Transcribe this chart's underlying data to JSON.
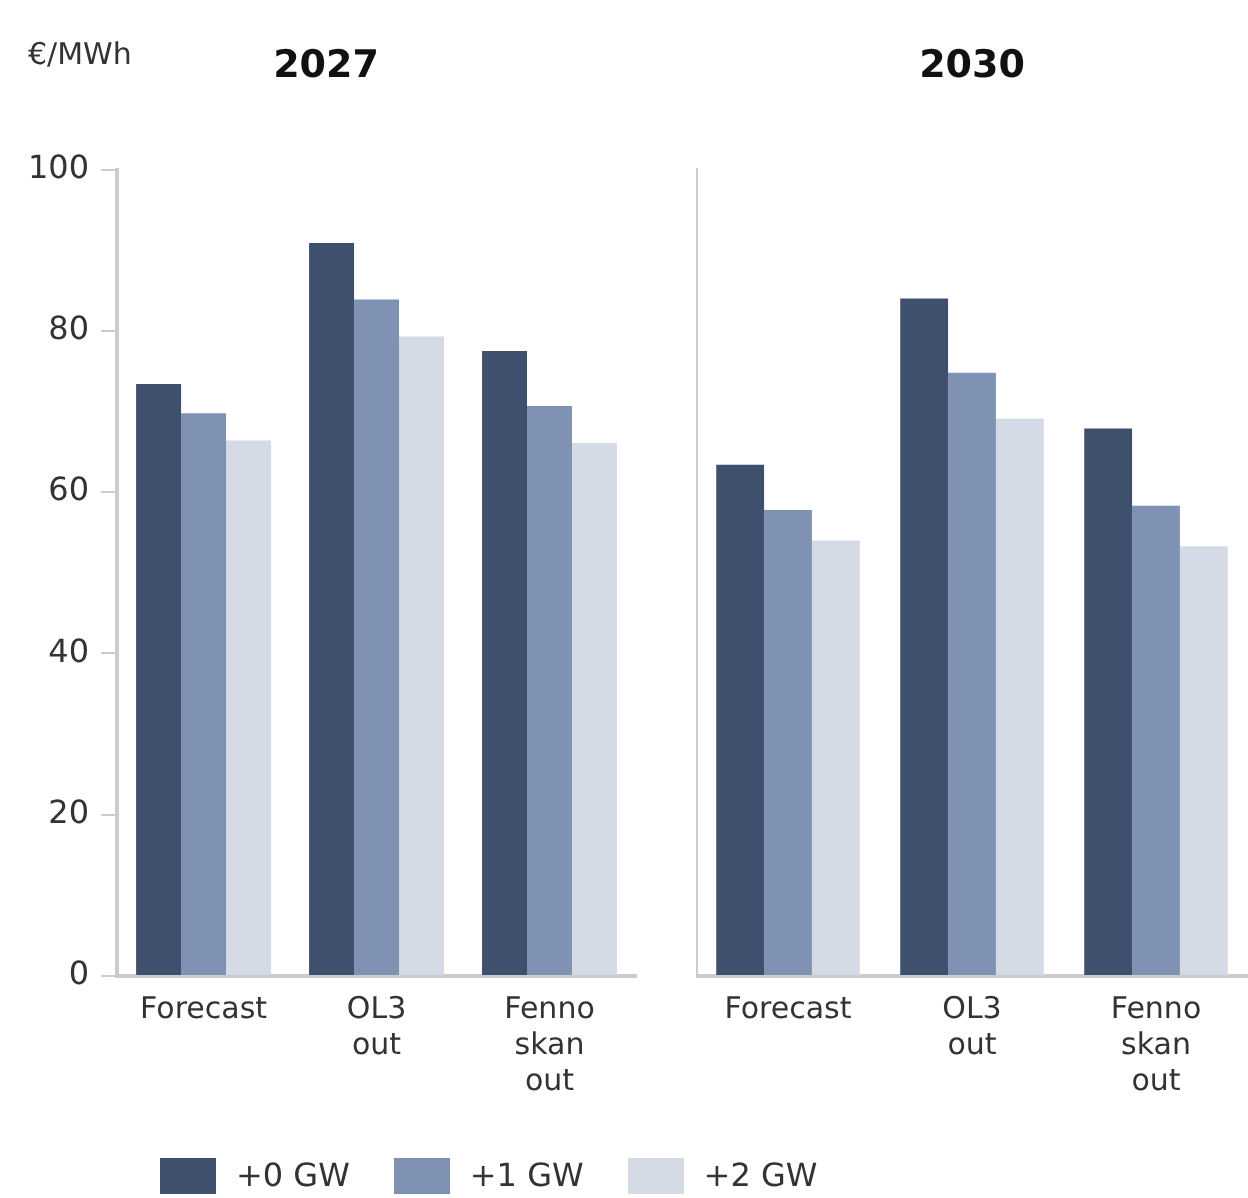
{
  "chart_data": [
    {
      "type": "bar",
      "title": "2027",
      "ylabel": "€/MWh",
      "categories": [
        "Forecast",
        "OL3 out",
        "Fenno skan out"
      ],
      "ylim": [
        0,
        100
      ],
      "yticks": [
        0,
        20,
        40,
        60,
        80,
        100
      ],
      "grid": false,
      "legend": "bottom",
      "series": [
        {
          "name": "+0 GW",
          "color": "#3f4f6e",
          "values": [
            73.4,
            90.9,
            77.5
          ]
        },
        {
          "name": "+1 GW",
          "color": "#7f92b4",
          "values": [
            69.8,
            83.9,
            70.7
          ]
        },
        {
          "name": "+2 GW",
          "color": "#d4dae6",
          "values": [
            66.4,
            79.3,
            66.1
          ]
        }
      ]
    },
    {
      "type": "bar",
      "title": "2030",
      "categories": [
        "Forecast",
        "OL3 out",
        "Fenno skan out"
      ],
      "ylim": [
        0,
        100
      ],
      "yticks": [
        0,
        20,
        40,
        60,
        80,
        100
      ],
      "grid": false,
      "tick_labels": "x",
      "series": [
        {
          "color": "#3f4f6e",
          "values": [
            63.4,
            84.0,
            67.9
          ]
        },
        {
          "color": "#7f92b4",
          "values": [
            57.8,
            74.8,
            58.3
          ]
        },
        {
          "color": "#d4dae6",
          "values": [
            54.0,
            69.1,
            53.3
          ]
        }
      ]
    }
  ]
}
